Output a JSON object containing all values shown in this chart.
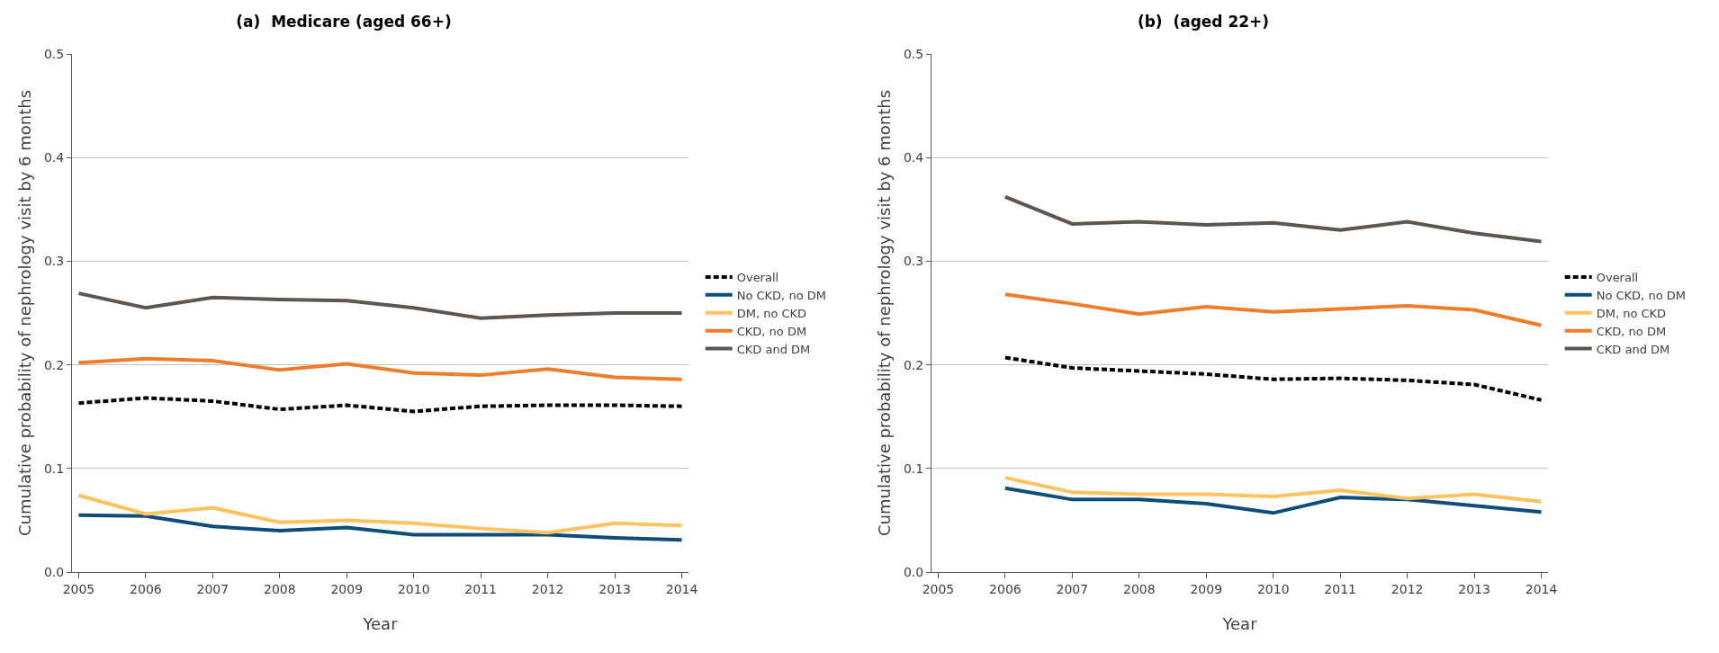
{
  "chart_data": [
    {
      "type": "line",
      "title": "(a)  Medicare (aged 66+)",
      "xlabel": "Year",
      "ylabel": "Cumulative probability of nephrology visit by 6 months",
      "categories": [
        "2005",
        "2006",
        "2007",
        "2008",
        "2009",
        "2010",
        "2011",
        "2012",
        "2013",
        "2014"
      ],
      "ylim": [
        0,
        0.5
      ],
      "yticks": [
        {
          "value": 0,
          "label": "0.0"
        },
        0.1,
        0.2,
        0.3,
        0.4,
        0.5
      ],
      "grid": "y",
      "legend": "right",
      "marker": "none",
      "series": [
        {
          "name": "Overall",
          "color": "#000000",
          "line_style": "dashed",
          "values": [
            0.163,
            0.168,
            0.165,
            0.157,
            0.161,
            0.155,
            0.16,
            0.161,
            0.161,
            0.16
          ]
        },
        {
          "name": "No CKD, no DM",
          "color": "#0e4d7a",
          "line_style": "solid",
          "values": [
            0.055,
            0.054,
            0.044,
            0.04,
            0.043,
            0.036,
            0.036,
            0.036,
            0.033,
            0.031
          ]
        },
        {
          "name": "DM, no CKD",
          "color": "#fdc35e",
          "line_style": "solid",
          "values": [
            0.074,
            0.056,
            0.062,
            0.048,
            0.05,
            0.047,
            0.042,
            0.038,
            0.047,
            0.045
          ]
        },
        {
          "name": "CKD, no DM",
          "color": "#ee7d2b",
          "line_style": "solid",
          "values": [
            0.202,
            0.206,
            0.204,
            0.195,
            0.201,
            0.192,
            0.19,
            0.196,
            0.188,
            0.186
          ]
        },
        {
          "name": "CKD and DM",
          "color": "#5f5550",
          "line_style": "solid",
          "values": [
            0.269,
            0.255,
            0.265,
            0.263,
            0.262,
            0.255,
            0.245,
            0.248,
            0.25,
            0.25
          ]
        }
      ]
    },
    {
      "type": "line",
      "title": "(b)  (aged 22+)",
      "xlabel": "Year",
      "ylabel": "Cumulative probability of nephrology visit by 6 months",
      "categories": [
        "2005",
        "2006",
        "2007",
        "2008",
        "2009",
        "2010",
        "2011",
        "2012",
        "2013",
        "2014"
      ],
      "ylim": [
        0,
        0.5
      ],
      "yticks": [
        {
          "value": 0,
          "label": "0.0"
        },
        0.1,
        0.2,
        0.3,
        0.4,
        0.5
      ],
      "grid": "y",
      "legend": "right",
      "marker": "none",
      "series": [
        {
          "name": "Overall",
          "color": "#000000",
          "line_style": "dashed",
          "values": [
            null,
            0.207,
            0.197,
            0.194,
            0.191,
            0.186,
            0.187,
            0.185,
            0.181,
            0.166
          ]
        },
        {
          "name": "No CKD, no DM",
          "color": "#0e4d7a",
          "line_style": "solid",
          "values": [
            null,
            0.081,
            0.07,
            0.07,
            0.066,
            0.057,
            0.072,
            0.07,
            0.064,
            0.058
          ]
        },
        {
          "name": "DM, no CKD",
          "color": "#fdc35e",
          "line_style": "solid",
          "values": [
            null,
            0.091,
            0.077,
            0.075,
            0.075,
            0.073,
            0.079,
            0.071,
            0.075,
            0.068
          ]
        },
        {
          "name": "CKD, no DM",
          "color": "#ee7d2b",
          "line_style": "solid",
          "values": [
            null,
            0.268,
            0.259,
            0.249,
            0.256,
            0.251,
            0.254,
            0.257,
            0.253,
            0.238
          ]
        },
        {
          "name": "CKD and DM",
          "color": "#5f5550",
          "line_style": "solid",
          "values": [
            null,
            0.362,
            0.336,
            0.338,
            0.335,
            0.337,
            0.33,
            0.338,
            0.327,
            0.319
          ]
        }
      ]
    }
  ]
}
